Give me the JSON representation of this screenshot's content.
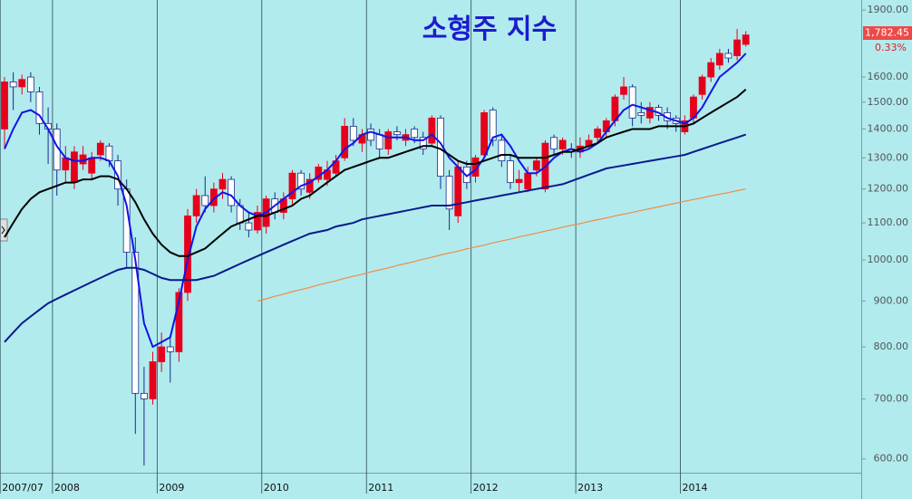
{
  "chart_data": {
    "type": "candlestick",
    "title": "소형주 지수",
    "categories": [
      "2007/07",
      null,
      null,
      null,
      null,
      null,
      "2008",
      null,
      null,
      null,
      null,
      null,
      null,
      null,
      null,
      null,
      null,
      null,
      "2009",
      null,
      null,
      null,
      null,
      null,
      null,
      null,
      null,
      null,
      null,
      null,
      "2010",
      null,
      null,
      null,
      null,
      null,
      null,
      null,
      null,
      null,
      null,
      null,
      "2011",
      null,
      null,
      null,
      null,
      null,
      null,
      null,
      null,
      null,
      null,
      null,
      "2012",
      null,
      null,
      null,
      null,
      null,
      null,
      null,
      null,
      null,
      null,
      null,
      "2013",
      null,
      null,
      null,
      null,
      null,
      null,
      null,
      null,
      null,
      null,
      null,
      "2014",
      null,
      null,
      null,
      null,
      null,
      null,
      null
    ],
    "open": [
      1400,
      1580,
      1560,
      1600,
      1540,
      1420,
      1400,
      1260,
      1220,
      1280,
      1250,
      1310,
      1340,
      1290,
      1200,
      1020,
      710,
      700,
      770,
      800,
      790,
      920,
      1120,
      1180,
      1150,
      1200,
      1230,
      1150,
      1100,
      1080,
      1090,
      1170,
      1130,
      1170,
      1250,
      1190,
      1230,
      1230,
      1250,
      1300,
      1410,
      1350,
      1400,
      1380,
      1330,
      1390,
      1360,
      1400,
      1370,
      1350,
      1440,
      1240,
      1120,
      1270,
      1240,
      1310,
      1470,
      1360,
      1290,
      1220,
      1200,
      1260,
      1200,
      1370,
      1330,
      1330,
      1320,
      1340,
      1370,
      1390,
      1430,
      1530,
      1560,
      1460,
      1440,
      1480,
      1460,
      1440,
      1390,
      1440,
      1530,
      1600,
      1650,
      1700,
      1690,
      1740
    ],
    "high": [
      1600,
      1620,
      1610,
      1620,
      1560,
      1480,
      1420,
      1340,
      1340,
      1340,
      1320,
      1360,
      1350,
      1310,
      1230,
      1060,
      760,
      790,
      830,
      820,
      930,
      1140,
      1200,
      1240,
      1220,
      1250,
      1240,
      1170,
      1130,
      1150,
      1180,
      1190,
      1190,
      1260,
      1260,
      1250,
      1280,
      1290,
      1310,
      1440,
      1440,
      1400,
      1420,
      1400,
      1400,
      1410,
      1400,
      1410,
      1390,
      1450,
      1450,
      1260,
      1290,
      1290,
      1310,
      1470,
      1480,
      1380,
      1310,
      1260,
      1270,
      1300,
      1360,
      1380,
      1370,
      1350,
      1370,
      1380,
      1410,
      1440,
      1530,
      1600,
      1570,
      1500,
      1500,
      1490,
      1480,
      1450,
      1450,
      1530,
      1610,
      1680,
      1720,
      1720,
      1810,
      1800
    ],
    "low": [
      1330,
      1470,
      1530,
      1500,
      1380,
      1280,
      1180,
      1220,
      1200,
      1260,
      1230,
      1290,
      1270,
      1150,
      980,
      640,
      590,
      690,
      750,
      730,
      770,
      900,
      1100,
      1130,
      1130,
      1170,
      1130,
      1080,
      1060,
      1070,
      1070,
      1110,
      1110,
      1150,
      1180,
      1170,
      1220,
      1210,
      1240,
      1290,
      1340,
      1320,
      1340,
      1300,
      1310,
      1360,
      1340,
      1350,
      1310,
      1340,
      1200,
      1080,
      1100,
      1200,
      1220,
      1300,
      1340,
      1270,
      1200,
      1190,
      1190,
      1240,
      1190,
      1310,
      1310,
      1300,
      1300,
      1330,
      1350,
      1370,
      1410,
      1510,
      1410,
      1420,
      1420,
      1430,
      1400,
      1390,
      1380,
      1420,
      1510,
      1580,
      1630,
      1660,
      1670,
      1730
    ],
    "close": [
      1580,
      1560,
      1590,
      1540,
      1420,
      1400,
      1260,
      1300,
      1320,
      1310,
      1300,
      1350,
      1290,
      1200,
      1020,
      710,
      700,
      770,
      800,
      790,
      920,
      1120,
      1180,
      1150,
      1200,
      1230,
      1150,
      1100,
      1080,
      1130,
      1170,
      1130,
      1170,
      1250,
      1200,
      1230,
      1270,
      1260,
      1290,
      1410,
      1360,
      1380,
      1360,
      1330,
      1390,
      1380,
      1380,
      1370,
      1330,
      1440,
      1240,
      1140,
      1270,
      1220,
      1300,
      1460,
      1360,
      1290,
      1220,
      1230,
      1250,
      1290,
      1350,
      1330,
      1360,
      1320,
      1340,
      1360,
      1400,
      1430,
      1520,
      1560,
      1440,
      1450,
      1480,
      1450,
      1430,
      1420,
      1430,
      1520,
      1600,
      1660,
      1700,
      1680,
      1760,
      1782.45
    ],
    "up_color": "#e6001c",
    "down_color": "#ffffff",
    "down_edge_color": "#1a2a8a",
    "series": [
      {
        "color": "#1414e6",
        "values": [
          1330,
          1400,
          1460,
          1470,
          1450,
          1400,
          1340,
          1300,
          1290,
          1290,
          1300,
          1300,
          1290,
          1240,
          1150,
          1000,
          850,
          800,
          810,
          820,
          900,
          1000,
          1090,
          1140,
          1170,
          1190,
          1180,
          1150,
          1130,
          1120,
          1130,
          1150,
          1170,
          1190,
          1210,
          1220,
          1240,
          1260,
          1290,
          1330,
          1350,
          1380,
          1390,
          1380,
          1370,
          1370,
          1370,
          1360,
          1360,
          1380,
          1350,
          1300,
          1270,
          1240,
          1260,
          1300,
          1370,
          1380,
          1340,
          1290,
          1250,
          1250,
          1270,
          1300,
          1320,
          1330,
          1320,
          1330,
          1350,
          1390,
          1430,
          1470,
          1490,
          1480,
          1470,
          1460,
          1440,
          1430,
          1420,
          1440,
          1480,
          1540,
          1600,
          1630,
          1660,
          1700
        ]
      },
      {
        "color": "#000000",
        "values": [
          1060,
          1100,
          1140,
          1170,
          1190,
          1200,
          1210,
          1220,
          1220,
          1230,
          1230,
          1240,
          1240,
          1230,
          1200,
          1160,
          1110,
          1070,
          1040,
          1020,
          1010,
          1010,
          1020,
          1030,
          1050,
          1070,
          1090,
          1100,
          1110,
          1120,
          1120,
          1130,
          1140,
          1150,
          1170,
          1180,
          1200,
          1220,
          1240,
          1260,
          1270,
          1280,
          1290,
          1300,
          1300,
          1310,
          1320,
          1330,
          1340,
          1340,
          1330,
          1310,
          1290,
          1280,
          1280,
          1290,
          1300,
          1310,
          1310,
          1300,
          1300,
          1300,
          1300,
          1310,
          1320,
          1320,
          1330,
          1340,
          1350,
          1370,
          1380,
          1390,
          1400,
          1400,
          1400,
          1410,
          1410,
          1410,
          1410,
          1420,
          1440,
          1460,
          1480,
          1500,
          1520,
          1550
        ]
      },
      {
        "color": "#0a1a8c",
        "values": [
          810,
          830,
          850,
          865,
          880,
          895,
          905,
          915,
          925,
          935,
          945,
          955,
          965,
          975,
          980,
          980,
          975,
          965,
          955,
          950,
          950,
          950,
          950,
          955,
          960,
          970,
          980,
          990,
          1000,
          1010,
          1020,
          1030,
          1040,
          1050,
          1060,
          1070,
          1075,
          1080,
          1090,
          1095,
          1100,
          1110,
          1115,
          1120,
          1125,
          1130,
          1135,
          1140,
          1145,
          1150,
          1150,
          1150,
          1155,
          1160,
          1165,
          1170,
          1175,
          1180,
          1185,
          1190,
          1195,
          1200,
          1205,
          1210,
          1215,
          1225,
          1235,
          1245,
          1255,
          1265,
          1270,
          1275,
          1280,
          1285,
          1290,
          1295,
          1300,
          1305,
          1310,
          1320,
          1330,
          1340,
          1350,
          1360,
          1370,
          1380
        ]
      },
      {
        "color": "#f08c46",
        "values": [
          null,
          null,
          null,
          null,
          null,
          null,
          null,
          null,
          null,
          null,
          null,
          null,
          null,
          null,
          null,
          null,
          null,
          null,
          null,
          null,
          null,
          null,
          null,
          null,
          null,
          null,
          null,
          null,
          null,
          900,
          905,
          911,
          916,
          922,
          927,
          932,
          938,
          943,
          948,
          954,
          959,
          964,
          970,
          975,
          980,
          986,
          991,
          996,
          1002,
          1007,
          1013,
          1018,
          1023,
          1029,
          1034,
          1039,
          1045,
          1050,
          1055,
          1061,
          1066,
          1071,
          1077,
          1082,
          1088,
          1093,
          1098,
          1104,
          1109,
          1114,
          1120,
          1125,
          1130,
          1136,
          1141,
          1146,
          1152,
          1157,
          1163,
          1168,
          1173,
          1179,
          1184,
          1189,
          1195,
          1200
        ]
      }
    ],
    "ylim": [
      575,
      1950
    ],
    "log_scale": true,
    "yticks": [
      {
        "value": 600,
        "label": "600.00"
      },
      {
        "value": 700,
        "label": "700.00"
      },
      {
        "value": 800,
        "label": "800.00"
      },
      {
        "value": 900,
        "label": "900.00"
      },
      {
        "value": 1000,
        "label": "1000.00"
      },
      {
        "value": 1100,
        "label": "1100.00"
      },
      {
        "value": 1200,
        "label": "1200.00"
      },
      {
        "value": 1300,
        "label": "1300.00"
      },
      {
        "value": 1400,
        "label": "1400.00"
      },
      {
        "value": 1500,
        "label": "1500.00"
      },
      {
        "value": 1600,
        "label": "1600.00"
      },
      {
        "value": 1900,
        "label": "1900.00"
      }
    ],
    "last_value_label": "1,782.45",
    "change_label": "0.33%"
  }
}
